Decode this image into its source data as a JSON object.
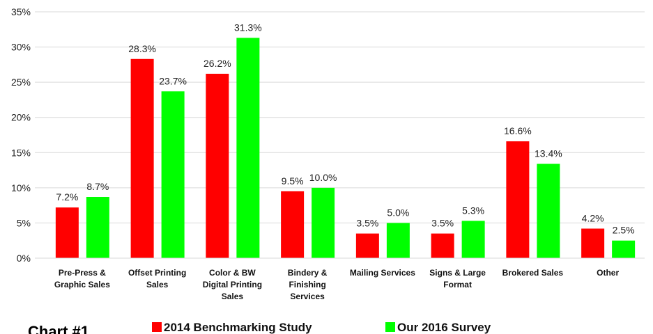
{
  "chart_data": {
    "type": "bar",
    "categories": [
      "Pre-Press & Graphic Sales",
      "Offset Printing Sales",
      "Color & BW Digital Printing Sales",
      "Bindery & Finishing Services",
      "Mailing Services",
      "Signs & Large Format",
      "Brokered Sales",
      "Other"
    ],
    "series": [
      {
        "name": "2014 Benchmarking Study",
        "color": "#ff0000",
        "values": [
          7.2,
          28.3,
          26.2,
          9.5,
          3.5,
          3.5,
          16.6,
          4.2
        ],
        "value_labels": [
          "7.2%",
          "28.3%",
          "26.2%",
          "9.5%",
          "3.5%",
          "3.5%",
          "16.6%",
          "4.2%"
        ]
      },
      {
        "name": "Our 2016 Survey",
        "color": "#00ff00",
        "values": [
          8.7,
          23.7,
          31.3,
          10.0,
          5.0,
          5.3,
          13.4,
          2.5
        ],
        "value_labels": [
          "8.7%",
          "23.7%",
          "31.3%",
          "10.0%",
          "5.0%",
          "5.3%",
          "13.4%",
          "2.5%"
        ]
      }
    ],
    "ylim": [
      0,
      35
    ],
    "yticks": [
      {
        "value": 0,
        "label": "0%"
      },
      {
        "value": 5,
        "label": "5%"
      },
      {
        "value": 10,
        "label": "10%"
      },
      {
        "value": 15,
        "label": "15%"
      },
      {
        "value": 20,
        "label": "20%"
      },
      {
        "value": 25,
        "label": "25%"
      },
      {
        "value": 30,
        "label": "30%"
      },
      {
        "value": 35,
        "label": "35%"
      }
    ],
    "grid": true,
    "legend": "bottom",
    "annotation": "Chart #1"
  }
}
